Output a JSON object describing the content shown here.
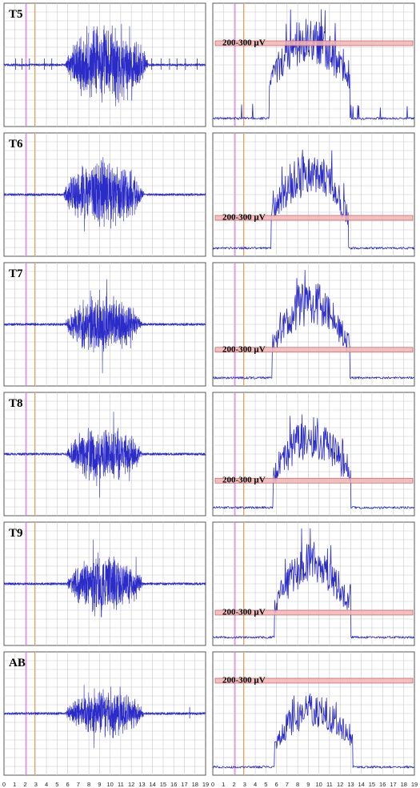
{
  "chart_data": {
    "type": "line",
    "x_ticks": [
      "0",
      "1",
      "2",
      "3",
      "4",
      "5",
      "6",
      "7",
      "8",
      "9",
      "10",
      "11",
      "12",
      "13",
      "14",
      "15",
      "16",
      "17",
      "18",
      "19"
    ],
    "xlim": [
      0,
      19
    ],
    "band": {
      "label": "200-300 µV"
    },
    "colors": {
      "signal": "#2b2bc8",
      "magenta_marker": "#e060e0",
      "orange_marker": "#e0a050",
      "band_fill": "#f4b4b4",
      "band_edge": "#b05050",
      "grid": "#c8c8c8"
    },
    "markers": {
      "magenta_x": 2.1,
      "orange_x": 2.9
    },
    "panels": [
      {
        "label": "T5",
        "raw_start": 5.8,
        "raw_end": 13.6,
        "raw_amp": 0.75,
        "env_start": 5.3,
        "env_end": 12.9,
        "env_peak": 0.95,
        "band_level": 0.7,
        "baseline_spikes": true,
        "spike_xs": [
          1.1,
          1.7,
          2.4,
          3.8,
          4.5,
          13.9,
          14.8,
          15.6,
          16.3,
          17.1,
          18.2
        ]
      },
      {
        "label": "T6",
        "raw_start": 5.6,
        "raw_end": 13.2,
        "raw_amp": 0.65,
        "env_start": 5.5,
        "env_end": 12.8,
        "env_peak": 0.9,
        "band_level": 0.3,
        "baseline_spikes": false,
        "spike_xs": []
      },
      {
        "label": "T7",
        "raw_start": 5.8,
        "raw_end": 13.0,
        "raw_amp": 0.55,
        "env_start": 5.6,
        "env_end": 12.9,
        "env_peak": 0.9,
        "band_level": 0.28,
        "baseline_spikes": false,
        "spike_xs": []
      },
      {
        "label": "T8",
        "raw_start": 5.9,
        "raw_end": 13.0,
        "raw_amp": 0.55,
        "env_start": 5.7,
        "env_end": 13.0,
        "env_peak": 0.85,
        "band_level": 0.27,
        "baseline_spikes": false,
        "spike_xs": []
      },
      {
        "label": "T9",
        "raw_start": 5.9,
        "raw_end": 13.1,
        "raw_amp": 0.6,
        "env_start": 5.8,
        "env_end": 13.0,
        "env_peak": 0.88,
        "band_level": 0.25,
        "baseline_spikes": false,
        "spike_xs": []
      },
      {
        "label": "AB",
        "raw_start": 5.8,
        "raw_end": 13.2,
        "raw_amp": 0.45,
        "env_start": 5.8,
        "env_end": 13.2,
        "env_peak": 0.7,
        "band_level": 0.8,
        "baseline_spikes": false,
        "spike_xs": [
          17.5
        ]
      }
    ]
  }
}
